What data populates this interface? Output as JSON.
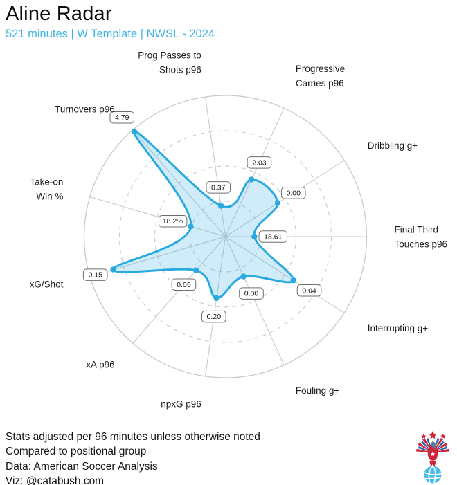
{
  "header": {
    "title": "Aline Radar",
    "subtitle": "521 minutes | W Template | NWSL - 2024"
  },
  "footer": {
    "lines": [
      "Stats adjusted per 96 minutes unless otherwise noted",
      "Compared to positional group",
      "Data: American Soccer Analysis",
      "Viz: @catabush.com"
    ]
  },
  "logo": {
    "name": "american-soccer-analysis-eagle-logo",
    "colors": {
      "red": "#ce2538",
      "blue": "#2a6fb5",
      "ball_blue": "#45bde8"
    }
  },
  "colors": {
    "accent_blue": "#29a9e1",
    "fill_blue_rgba": "rgba(41,169,225,0.22)",
    "subtitle_blue": "#41b2e4",
    "grid_gray": "#c9c9c9",
    "label_box_border": "#6e6e6e",
    "text_dark": "#1c1c1c"
  },
  "chart_data": {
    "type": "radar",
    "title": "Aline Radar",
    "subtitle": "521 minutes | W Template | NWSL - 2024",
    "n_axes": 11,
    "rotation_deg": -8.18,
    "grid": {
      "rings_frac": [
        0.25,
        0.5,
        0.75
      ],
      "outer_frac": 1.0,
      "style": "dashed-inner-solid-outer"
    },
    "axes": [
      {
        "label": "Prog Passes to\nShots p96",
        "value_label": "0.37",
        "radius_frac": 0.22
      },
      {
        "label": "Progressive\nCarries p96",
        "value_label": "2.03",
        "radius_frac": 0.445
      },
      {
        "label": "Dribbling g+",
        "value_label": "0.00",
        "radius_frac": 0.44
      },
      {
        "label": "Final Third\nTouches p96",
        "value_label": "18.61",
        "radius_frac": 0.205
      },
      {
        "label": "Interrupting g+",
        "value_label": "0.04",
        "radius_frac": 0.573
      },
      {
        "label": "Fouling g+",
        "value_label": "0.00",
        "radius_frac": 0.31
      },
      {
        "label": "npxG p96",
        "value_label": "0.20",
        "radius_frac": 0.44
      },
      {
        "label": "xA p96",
        "value_label": "0.05",
        "radius_frac": 0.317
      },
      {
        "label": "xG/Shot",
        "value_label": "0.15",
        "radius_frac": 0.827
      },
      {
        "label": "Take-on\nWin %",
        "value_label": "18.2%",
        "radius_frac": 0.255
      },
      {
        "label": "Turnovers p96",
        "value_label": "4.79",
        "radius_frac": 0.985
      }
    ]
  }
}
